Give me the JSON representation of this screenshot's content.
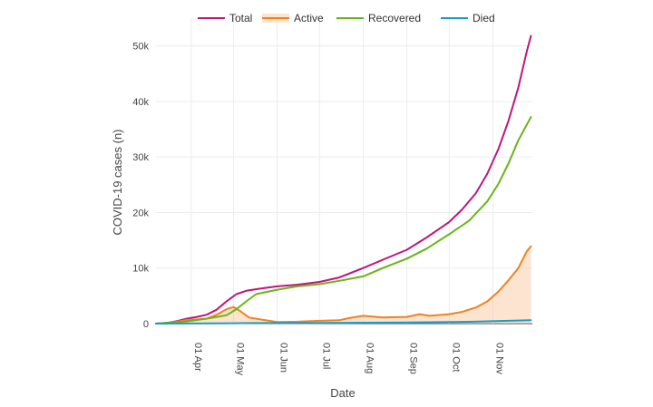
{
  "chart_data": {
    "type": "line",
    "title": "",
    "xlabel": "Date",
    "ylabel": "COVID-19 cases (n)",
    "x_range": [
      "2020-03-07",
      "2020-11-29"
    ],
    "ylim": [
      0,
      55000
    ],
    "grid": true,
    "legend_position": "top",
    "x_ticks": [
      {
        "date": "2020-04-01",
        "label": "01 Apr"
      },
      {
        "date": "2020-05-01",
        "label": "01 May"
      },
      {
        "date": "2020-06-01",
        "label": "01 Jun"
      },
      {
        "date": "2020-07-01",
        "label": "01 Jul"
      },
      {
        "date": "2020-08-01",
        "label": "01 Aug"
      },
      {
        "date": "2020-09-01",
        "label": "01 Sep"
      },
      {
        "date": "2020-10-01",
        "label": "01 Oct"
      },
      {
        "date": "2020-11-01",
        "label": "01 Nov"
      }
    ],
    "y_ticks": [
      {
        "value": 0,
        "label": "0"
      },
      {
        "value": 10000,
        "label": "10k"
      },
      {
        "value": 20000,
        "label": "20k"
      },
      {
        "value": 30000,
        "label": "30k"
      },
      {
        "value": 40000,
        "label": "40k"
      },
      {
        "value": 50000,
        "label": "50k"
      }
    ],
    "series": [
      {
        "name": "Total",
        "color": "#c0157a",
        "fill": false,
        "points": [
          [
            "2020-03-07",
            0
          ],
          [
            "2020-03-15",
            150
          ],
          [
            "2020-03-22",
            450
          ],
          [
            "2020-03-29",
            900
          ],
          [
            "2020-04-05",
            1200
          ],
          [
            "2020-04-12",
            1600
          ],
          [
            "2020-04-19",
            2500
          ],
          [
            "2020-04-26",
            4000
          ],
          [
            "2020-05-03",
            5300
          ],
          [
            "2020-05-10",
            5900
          ],
          [
            "2020-05-20",
            6300
          ],
          [
            "2020-06-01",
            6700
          ],
          [
            "2020-06-15",
            7000
          ],
          [
            "2020-07-01",
            7500
          ],
          [
            "2020-07-15",
            8300
          ],
          [
            "2020-08-01",
            10000
          ],
          [
            "2020-08-15",
            11500
          ],
          [
            "2020-09-01",
            13300
          ],
          [
            "2020-09-15",
            15500
          ],
          [
            "2020-10-01",
            18300
          ],
          [
            "2020-10-10",
            20500
          ],
          [
            "2020-10-20",
            23500
          ],
          [
            "2020-10-28",
            27000
          ],
          [
            "2020-11-05",
            31500
          ],
          [
            "2020-11-12",
            36500
          ],
          [
            "2020-11-19",
            42500
          ],
          [
            "2020-11-25",
            49000
          ],
          [
            "2020-11-28",
            51800
          ]
        ]
      },
      {
        "name": "Active",
        "color": "#f0821e",
        "fill": true,
        "fill_color": "rgba(248,184,134,0.38)",
        "points": [
          [
            "2020-03-07",
            0
          ],
          [
            "2020-03-15",
            150
          ],
          [
            "2020-03-22",
            350
          ],
          [
            "2020-03-29",
            650
          ],
          [
            "2020-04-05",
            750
          ],
          [
            "2020-04-12",
            900
          ],
          [
            "2020-04-19",
            1600
          ],
          [
            "2020-04-26",
            2600
          ],
          [
            "2020-05-01",
            3000
          ],
          [
            "2020-05-06",
            2200
          ],
          [
            "2020-05-12",
            1100
          ],
          [
            "2020-05-20",
            750
          ],
          [
            "2020-06-01",
            300
          ],
          [
            "2020-06-15",
            350
          ],
          [
            "2020-07-01",
            500
          ],
          [
            "2020-07-15",
            600
          ],
          [
            "2020-07-22",
            1000
          ],
          [
            "2020-08-01",
            1400
          ],
          [
            "2020-08-15",
            1100
          ],
          [
            "2020-09-01",
            1200
          ],
          [
            "2020-09-10",
            1700
          ],
          [
            "2020-09-17",
            1400
          ],
          [
            "2020-10-01",
            1700
          ],
          [
            "2020-10-10",
            2100
          ],
          [
            "2020-10-20",
            2900
          ],
          [
            "2020-10-28",
            4000
          ],
          [
            "2020-11-05",
            5800
          ],
          [
            "2020-11-12",
            7800
          ],
          [
            "2020-11-19",
            10000
          ],
          [
            "2020-11-25",
            13000
          ],
          [
            "2020-11-28",
            13900
          ]
        ]
      },
      {
        "name": "Recovered",
        "color": "#6ab418",
        "fill": false,
        "points": [
          [
            "2020-03-07",
            0
          ],
          [
            "2020-03-29",
            400
          ],
          [
            "2020-04-12",
            900
          ],
          [
            "2020-04-26",
            1500
          ],
          [
            "2020-05-03",
            2600
          ],
          [
            "2020-05-10",
            4000
          ],
          [
            "2020-05-17",
            5300
          ],
          [
            "2020-06-01",
            6100
          ],
          [
            "2020-06-15",
            6700
          ],
          [
            "2020-07-01",
            7100
          ],
          [
            "2020-07-15",
            7700
          ],
          [
            "2020-08-01",
            8500
          ],
          [
            "2020-08-15",
            10000
          ],
          [
            "2020-09-01",
            11700
          ],
          [
            "2020-09-15",
            13500
          ],
          [
            "2020-10-01",
            16100
          ],
          [
            "2020-10-15",
            18500
          ],
          [
            "2020-10-28",
            22000
          ],
          [
            "2020-11-05",
            25200
          ],
          [
            "2020-11-12",
            28800
          ],
          [
            "2020-11-19",
            33000
          ],
          [
            "2020-11-28",
            37200
          ]
        ]
      },
      {
        "name": "Died",
        "color": "#1a9cc8",
        "fill": false,
        "points": [
          [
            "2020-03-07",
            0
          ],
          [
            "2020-04-15",
            40
          ],
          [
            "2020-05-15",
            100
          ],
          [
            "2020-07-01",
            130
          ],
          [
            "2020-09-01",
            200
          ],
          [
            "2020-10-15",
            330
          ],
          [
            "2020-11-28",
            600
          ]
        ]
      }
    ]
  }
}
